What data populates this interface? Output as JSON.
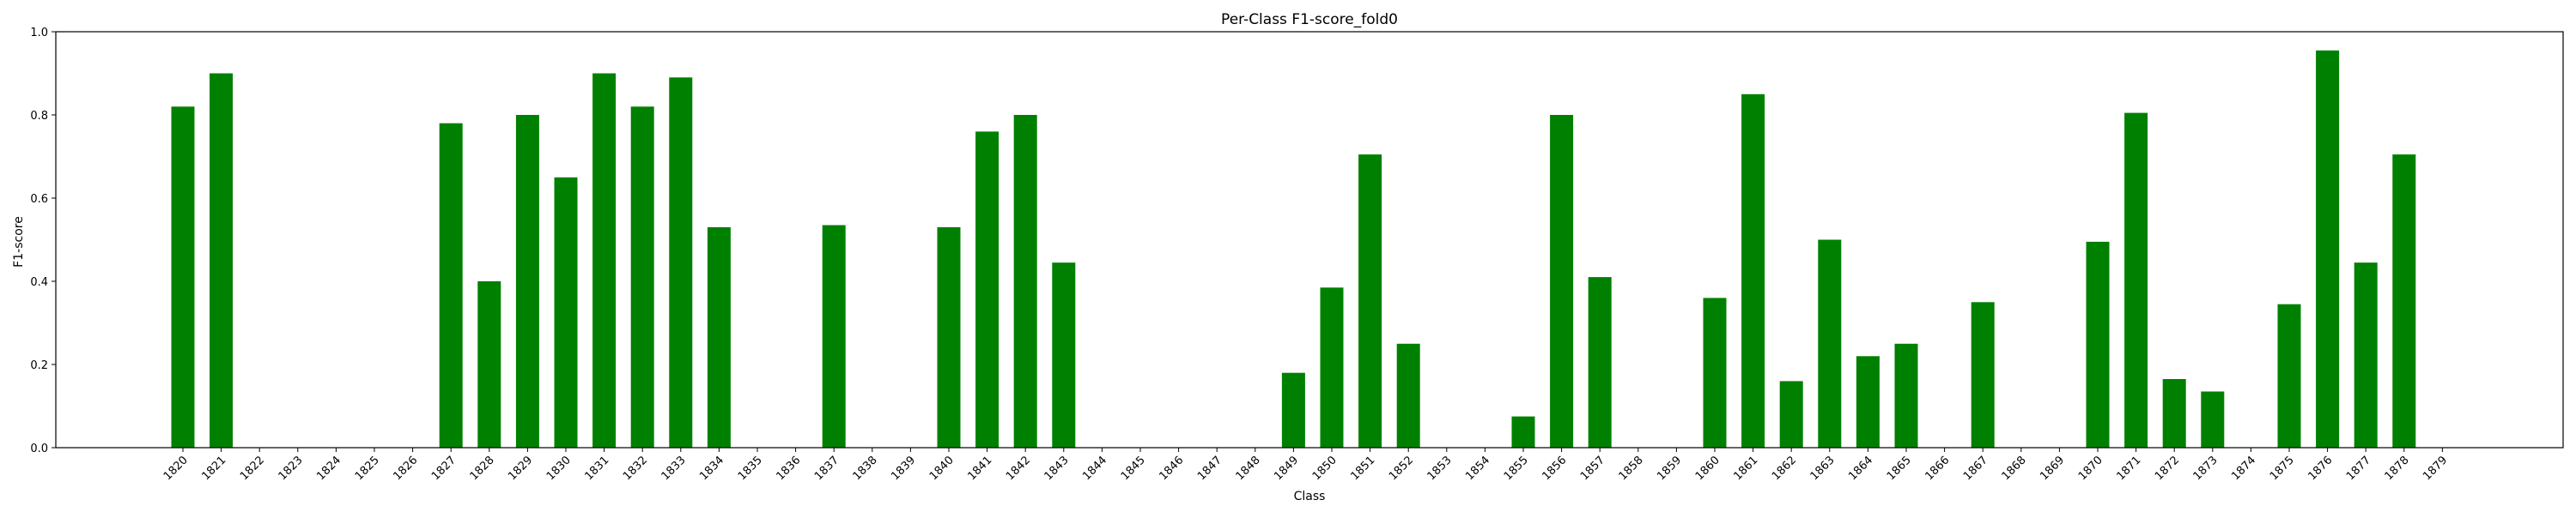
{
  "chart_data": {
    "type": "bar",
    "title": "Per-Class F1-score_fold0",
    "xlabel": "Class",
    "ylabel": "F1-score",
    "ylim": [
      0,
      1.0
    ],
    "yticks": [
      "0.0",
      "0.2",
      "0.4",
      "0.6",
      "0.8",
      "1.0"
    ],
    "grid": false,
    "bar_color": "#008000",
    "categories": [
      "1820",
      "1821",
      "1822",
      "1823",
      "1824",
      "1825",
      "1826",
      "1827",
      "1828",
      "1829",
      "1830",
      "1831",
      "1832",
      "1833",
      "1834",
      "1835",
      "1836",
      "1837",
      "1838",
      "1839",
      "1840",
      "1841",
      "1842",
      "1843",
      "1844",
      "1845",
      "1846",
      "1847",
      "1848",
      "1849",
      "1850",
      "1851",
      "1852",
      "1853",
      "1854",
      "1855",
      "1856",
      "1857",
      "1858",
      "1859",
      "1860",
      "1861",
      "1862",
      "1863",
      "1864",
      "1865",
      "1866",
      "1867",
      "1868",
      "1869",
      "1870",
      "1871",
      "1872",
      "1873",
      "1874",
      "1875",
      "1876",
      "1877",
      "1878",
      "1879"
    ],
    "values": [
      0.82,
      0.9,
      0,
      0,
      0,
      0,
      0,
      0.78,
      0.4,
      0.8,
      0.65,
      0.9,
      0.82,
      0.89,
      0.53,
      0,
      0,
      0.535,
      0,
      0,
      0.53,
      0.76,
      0.8,
      0.445,
      0,
      0,
      0,
      0,
      0,
      0.18,
      0.385,
      0.705,
      0.25,
      0,
      0,
      0.075,
      0.8,
      0.41,
      0,
      0,
      0.36,
      0.85,
      0.16,
      0.5,
      0.22,
      0.25,
      0,
      0.35,
      0,
      0,
      0.495,
      0.805,
      0.165,
      0.135,
      0,
      0.345,
      0.955,
      0.445,
      0.705,
      0
    ]
  }
}
